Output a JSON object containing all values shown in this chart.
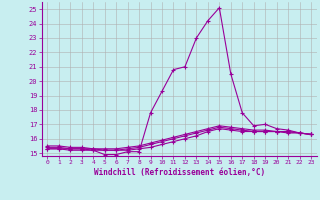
{
  "xlabel": "Windchill (Refroidissement éolien,°C)",
  "ylabel": "",
  "xlim": [
    -0.5,
    23.5
  ],
  "ylim": [
    14.8,
    25.5
  ],
  "yticks": [
    15,
    16,
    17,
    18,
    19,
    20,
    21,
    22,
    23,
    24,
    25
  ],
  "xticks": [
    0,
    1,
    2,
    3,
    4,
    5,
    6,
    7,
    8,
    9,
    10,
    11,
    12,
    13,
    14,
    15,
    16,
    17,
    18,
    19,
    20,
    21,
    22,
    23
  ],
  "bg_color": "#c8eef0",
  "grid_color": "#b0b0b0",
  "line_color": "#990099",
  "series": [
    {
      "x": [
        0,
        1,
        2,
        3,
        4,
        5,
        6,
        7,
        8,
        9,
        10,
        11,
        12,
        13,
        14,
        15,
        16,
        17,
        18,
        19,
        20,
        21,
        22,
        23
      ],
      "y": [
        15.3,
        15.3,
        15.2,
        15.2,
        15.2,
        14.9,
        14.9,
        15.1,
        15.1,
        17.8,
        19.3,
        20.8,
        21.0,
        23.0,
        24.2,
        25.1,
        20.5,
        17.8,
        16.9,
        17.0,
        16.7,
        16.6,
        16.4,
        16.3
      ]
    },
    {
      "x": [
        0,
        1,
        2,
        3,
        4,
        5,
        6,
        7,
        8,
        9,
        10,
        11,
        12,
        13,
        14,
        15,
        16,
        17,
        18,
        19,
        20,
        21,
        22,
        23
      ],
      "y": [
        15.3,
        15.3,
        15.3,
        15.3,
        15.2,
        15.2,
        15.2,
        15.2,
        15.3,
        15.4,
        15.6,
        15.8,
        16.0,
        16.2,
        16.5,
        16.7,
        16.6,
        16.5,
        16.5,
        16.5,
        16.5,
        16.5,
        16.4,
        16.3
      ]
    },
    {
      "x": [
        0,
        1,
        2,
        3,
        4,
        5,
        6,
        7,
        8,
        9,
        10,
        11,
        12,
        13,
        14,
        15,
        16,
        17,
        18,
        19,
        20,
        21,
        22,
        23
      ],
      "y": [
        15.4,
        15.4,
        15.3,
        15.3,
        15.3,
        15.2,
        15.2,
        15.3,
        15.4,
        15.6,
        15.8,
        16.0,
        16.2,
        16.4,
        16.6,
        16.8,
        16.7,
        16.6,
        16.5,
        16.5,
        16.5,
        16.4,
        16.4,
        16.3
      ]
    },
    {
      "x": [
        0,
        1,
        2,
        3,
        4,
        5,
        6,
        7,
        8,
        9,
        10,
        11,
        12,
        13,
        14,
        15,
        16,
        17,
        18,
        19,
        20,
        21,
        22,
        23
      ],
      "y": [
        15.5,
        15.5,
        15.4,
        15.4,
        15.3,
        15.3,
        15.3,
        15.4,
        15.5,
        15.7,
        15.9,
        16.1,
        16.3,
        16.5,
        16.7,
        16.9,
        16.8,
        16.7,
        16.6,
        16.6,
        16.5,
        16.5,
        16.4,
        16.3
      ]
    }
  ]
}
